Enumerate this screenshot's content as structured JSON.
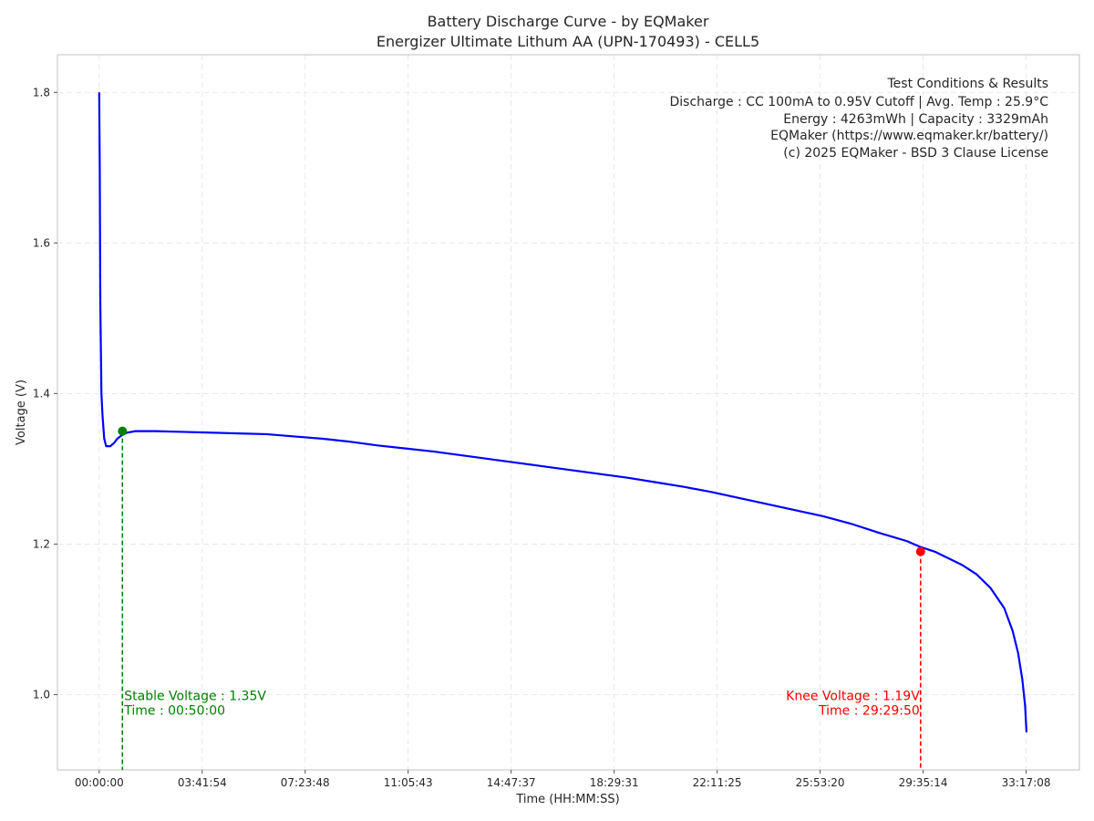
{
  "chart_data": {
    "type": "line",
    "title": "Battery Discharge Curve - by EQMaker",
    "subtitle": "Energizer Ultimate Lithum AA (UPN-170493) - CELL5",
    "xlabel": "Time (HH:MM:SS)",
    "ylabel": "Voltage (V)",
    "x_unit": "hours",
    "xlim": [
      -1.5,
      35.2
    ],
    "ylim": [
      0.9,
      1.85
    ],
    "grid": true,
    "x_ticks": [
      {
        "value": 0.0,
        "label": "00:00:00"
      },
      {
        "value": 3.6983,
        "label": "03:41:54"
      },
      {
        "value": 7.3967,
        "label": "07:23:48"
      },
      {
        "value": 11.0953,
        "label": "11:05:43"
      },
      {
        "value": 14.7936,
        "label": "14:47:37"
      },
      {
        "value": 18.4919,
        "label": "18:29:31"
      },
      {
        "value": 22.1903,
        "label": "22:11:25"
      },
      {
        "value": 25.8889,
        "label": "25:53:20"
      },
      {
        "value": 29.5872,
        "label": "29:35:14"
      },
      {
        "value": 33.2856,
        "label": "33:17:08"
      }
    ],
    "y_ticks": [
      {
        "value": 1.0,
        "label": "1.0"
      },
      {
        "value": 1.2,
        "label": "1.2"
      },
      {
        "value": 1.4,
        "label": "1.4"
      },
      {
        "value": 1.6,
        "label": "1.6"
      },
      {
        "value": 1.8,
        "label": "1.8"
      }
    ],
    "series": [
      {
        "name": "Voltage",
        "color": "#0000ff",
        "points": [
          [
            0.0,
            1.8
          ],
          [
            0.02,
            1.7
          ],
          [
            0.04,
            1.52
          ],
          [
            0.08,
            1.4
          ],
          [
            0.12,
            1.37
          ],
          [
            0.18,
            1.34
          ],
          [
            0.25,
            1.33
          ],
          [
            0.4,
            1.33
          ],
          [
            0.55,
            1.335
          ],
          [
            0.65,
            1.34
          ],
          [
            0.83,
            1.345
          ],
          [
            1.0,
            1.348
          ],
          [
            1.3,
            1.35
          ],
          [
            2.0,
            1.35
          ],
          [
            3.0,
            1.349
          ],
          [
            4.0,
            1.348
          ],
          [
            5.0,
            1.347
          ],
          [
            6.0,
            1.346
          ],
          [
            7.0,
            1.343
          ],
          [
            8.0,
            1.34
          ],
          [
            9.0,
            1.336
          ],
          [
            10.0,
            1.331
          ],
          [
            11.0,
            1.327
          ],
          [
            12.0,
            1.323
          ],
          [
            13.0,
            1.318
          ],
          [
            14.0,
            1.313
          ],
          [
            15.0,
            1.308
          ],
          [
            16.0,
            1.303
          ],
          [
            17.0,
            1.298
          ],
          [
            18.0,
            1.293
          ],
          [
            19.0,
            1.288
          ],
          [
            20.0,
            1.282
          ],
          [
            21.0,
            1.276
          ],
          [
            22.0,
            1.269
          ],
          [
            23.0,
            1.261
          ],
          [
            24.0,
            1.253
          ],
          [
            25.0,
            1.245
          ],
          [
            26.0,
            1.237
          ],
          [
            27.0,
            1.227
          ],
          [
            28.0,
            1.215
          ],
          [
            29.0,
            1.204
          ],
          [
            29.5,
            1.196
          ],
          [
            30.0,
            1.19
          ],
          [
            31.0,
            1.172
          ],
          [
            31.5,
            1.16
          ],
          [
            32.0,
            1.142
          ],
          [
            32.5,
            1.115
          ],
          [
            32.8,
            1.085
          ],
          [
            33.0,
            1.055
          ],
          [
            33.15,
            1.02
          ],
          [
            33.25,
            0.985
          ],
          [
            33.3,
            0.95
          ]
        ]
      }
    ],
    "markers": [
      {
        "name": "stable",
        "x": 0.8333,
        "y": 1.35,
        "color": "#008000",
        "label_line1": "Stable Voltage : 1.35V",
        "label_line2": "Time : 00:50:00"
      },
      {
        "name": "knee",
        "x": 29.4972,
        "y": 1.19,
        "color": "#ff0000",
        "label_line1": "Knee Voltage : 1.19V",
        "label_line2": "Time : 29:29:50"
      }
    ],
    "info_box": {
      "lines": [
        "Test Conditions & Results",
        "Discharge : CC 100mA to 0.95V Cutoff | Avg. Temp : 25.9°C",
        "Energy : 4263mWh | Capacity : 3329mAh",
        "EQMaker (https://www.eqmaker.kr/battery/)",
        "(c) 2025 EQMaker - BSD 3 Clause License"
      ]
    }
  }
}
